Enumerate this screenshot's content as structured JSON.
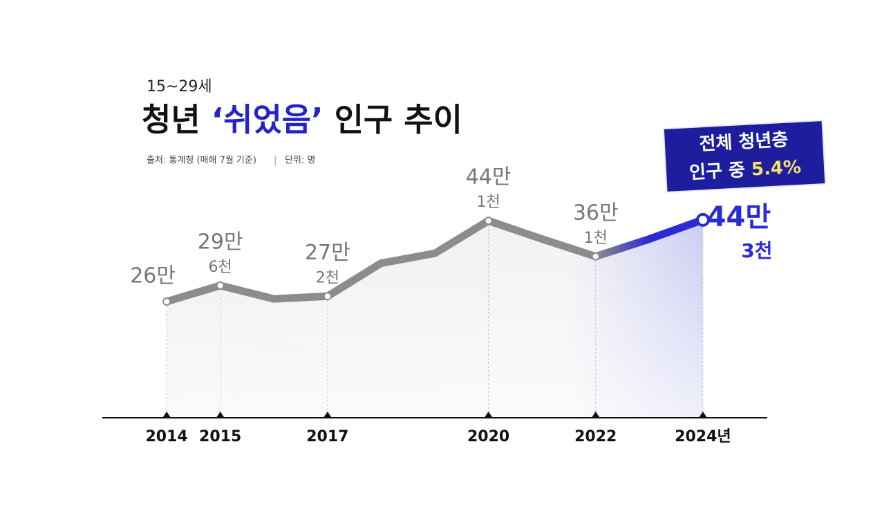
{
  "chart_data": {
    "type": "line",
    "subtitle": "15~29세",
    "title": [
      "청년",
      "‘쉬었음’",
      "인구 추이"
    ],
    "source": "출처: 통계청 (매해 7월 기준)",
    "unit": "단위: 명",
    "annotation": [
      "전체 청년층",
      "인구 중",
      "5.4%"
    ],
    "x": [
      2014,
      2015,
      2016,
      2017,
      2018,
      2019,
      2020,
      2021,
      2022,
      2023,
      2024
    ],
    "values": [
      260000,
      296000,
      266000,
      272000,
      346000,
      368000,
      441000,
      400000,
      361000,
      400000,
      443000
    ],
    "value_labels": [
      [
        "26만"
      ],
      [
        "29만",
        "6천"
      ],
      null,
      [
        "27만",
        "2천"
      ],
      null,
      null,
      [
        "44만",
        "1천"
      ],
      null,
      [
        "36만",
        "1천"
      ],
      null,
      [
        "44만",
        "3천"
      ]
    ],
    "color": "#8c8c8c",
    "highlight_color": "#2b2bd6",
    "xlim": [
      2012.8,
      2025.2
    ],
    "xticks": [
      2014,
      2015,
      2017,
      2020,
      2022,
      {
        "value": 2024,
        "label": "2024년"
      }
    ],
    "ylim": [
      0,
      500000
    ]
  }
}
